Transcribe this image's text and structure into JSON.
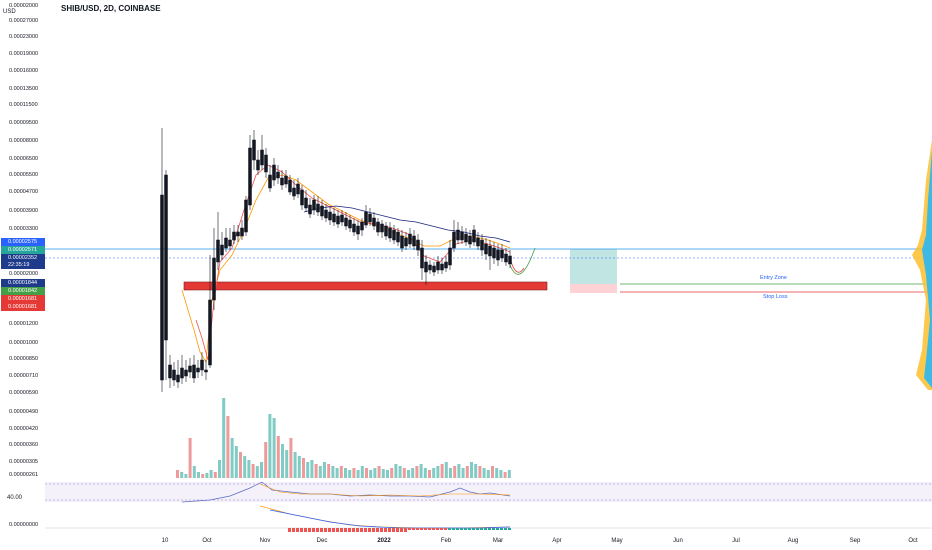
{
  "header": {
    "title": "SHIB/USD, 2D, COINBASE",
    "currency": "USD"
  },
  "price_axis": [
    "0.00002000",
    "0.00027000",
    "0.00023000",
    "0.00019000",
    "0.00016000",
    "0.00013500",
    "0.00011500",
    "0.00009500",
    "0.00008000",
    "0.00006500",
    "0.00005500",
    "0.00004700",
    "0.00003900",
    "0.00003300",
    "0.00002000",
    "0.00001200",
    "0.00001000",
    "0.00000850",
    "0.00000710",
    "0.00000590",
    "0.00000490",
    "0.00000420",
    "0.00000360",
    "0.00000305",
    "0.00000261"
  ],
  "price_tags": [
    {
      "text": "0.00002575",
      "color": "#2962ff"
    },
    {
      "text": "0.00002571",
      "color": "#26a69a"
    },
    {
      "text": "0.00002352",
      "color": "#1e3a8a"
    },
    {
      "text": "22:35:19",
      "color": "#1e3a8a"
    },
    {
      "text": "0.00001844",
      "color": "#1e3a8a"
    },
    {
      "text": "0.00001842",
      "color": "#43a047"
    },
    {
      "text": "0.00001681",
      "color": "#e53935"
    },
    {
      "text": "0.00001681",
      "color": "#e53935"
    }
  ],
  "time_axis": [
    "10",
    "Oct",
    "Nov",
    "Dec",
    "2022",
    "Feb",
    "Mar",
    "Apr",
    "May",
    "Jun",
    "Jul",
    "Aug",
    "Sep",
    "Oct"
  ],
  "annotations": {
    "entry_zone": "Entry Zone",
    "stop_loss": "Stop Loss"
  },
  "indicators": {
    "rsi_level": "40.00",
    "macd_axis": "0.00000000"
  },
  "colors": {
    "up": "#26a69a",
    "down": "#ef5350",
    "candle_body": "#131722",
    "ema_fast": "#ef5350",
    "ema_slow": "#ff9800",
    "ma_long": "#1a237e",
    "support_zone": "#e53935",
    "horizontal_line": "#2196f3",
    "target_zone": "#b2dfdb",
    "stop_zone": "#ffcdd2"
  }
}
